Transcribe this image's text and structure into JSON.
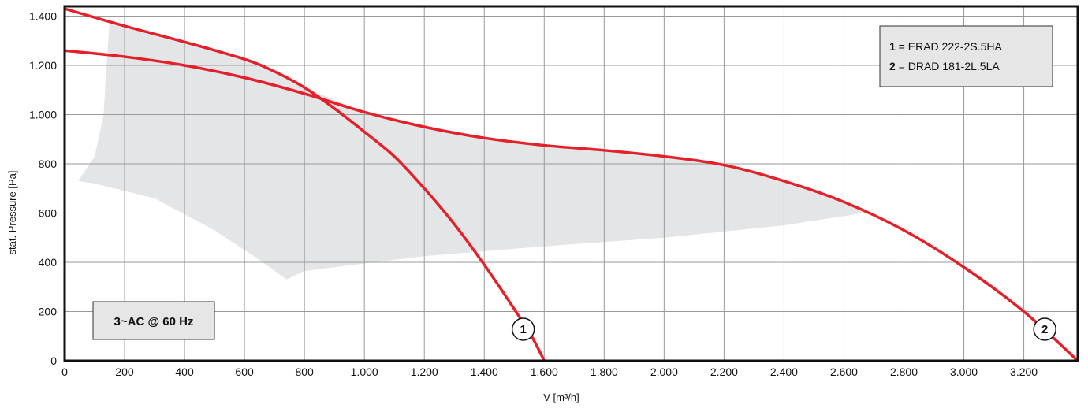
{
  "chart_data": {
    "type": "line",
    "xlabel": "V [m³/h]",
    "ylabel": "stat. Pressure [Pa]",
    "xlim": [
      0,
      3380
    ],
    "ylim": [
      0,
      1440
    ],
    "x_ticks": [
      0,
      200,
      400,
      600,
      800,
      1000,
      1200,
      1400,
      1600,
      1800,
      2000,
      2200,
      2400,
      2600,
      2800,
      3000,
      3200
    ],
    "x_tick_labels": [
      "0",
      "200",
      "400",
      "600",
      "800",
      "1.000",
      "1.200",
      "1.400",
      "1.600",
      "1.800",
      "2.000",
      "2.200",
      "2.400",
      "2.600",
      "2.800",
      "3.000",
      "3.200"
    ],
    "y_ticks": [
      0,
      200,
      400,
      600,
      800,
      1000,
      1200,
      1400
    ],
    "y_tick_labels": [
      "0",
      "200",
      "400",
      "600",
      "800",
      "1.000",
      "1.200",
      "1.400"
    ],
    "grid": true,
    "legend_position": "top-right",
    "legend": [
      {
        "number": "1",
        "text": " = ERAD 222-2S.5HA"
      },
      {
        "number": "2",
        "text": " = DRAD 181-2L.5LA"
      }
    ],
    "annotation": "3~AC @ 60 Hz",
    "colors": {
      "curve": "#e5202a",
      "region": "#e4e5e6",
      "grid": "#9a9a9a",
      "box": "#e6e6e6"
    },
    "series": [
      {
        "marker_label": "1",
        "marker_at": [
          1530,
          0
        ],
        "x": [
          0,
          200,
          400,
          600,
          700,
          800,
          900,
          1000,
          1100,
          1200,
          1300,
          1400,
          1500,
          1560,
          1600
        ],
        "y": [
          1430,
          1360,
          1295,
          1225,
          1175,
          1110,
          1025,
          930,
          830,
          700,
          555,
          390,
          210,
          95,
          0
        ]
      },
      {
        "marker_label": "2",
        "marker_at": [
          3270,
          0
        ],
        "x": [
          0,
          200,
          400,
          600,
          800,
          1000,
          1200,
          1400,
          1600,
          1800,
          2000,
          2200,
          2400,
          2600,
          2800,
          3000,
          3200,
          3380
        ],
        "y": [
          1260,
          1235,
          1200,
          1150,
          1085,
          1010,
          950,
          905,
          875,
          855,
          830,
          795,
          730,
          645,
          530,
          380,
          200,
          0
        ]
      }
    ],
    "shaded_region": {
      "x": [
        150,
        250,
        400,
        600,
        800,
        1000,
        1200,
        1400,
        1600,
        1800,
        2000,
        2200,
        2400,
        2600,
        2690,
        2400,
        2000,
        1600,
        1200,
        800,
        740,
        650,
        500,
        300,
        100,
        45,
        100,
        130,
        140
      ],
      "y": [
        1380,
        1340,
        1290,
        1230,
        1110,
        1010,
        950,
        905,
        875,
        855,
        830,
        795,
        730,
        645,
        605,
        550,
        500,
        465,
        425,
        365,
        330,
        410,
        530,
        660,
        720,
        730,
        830,
        1000,
        1200
      ]
    }
  }
}
